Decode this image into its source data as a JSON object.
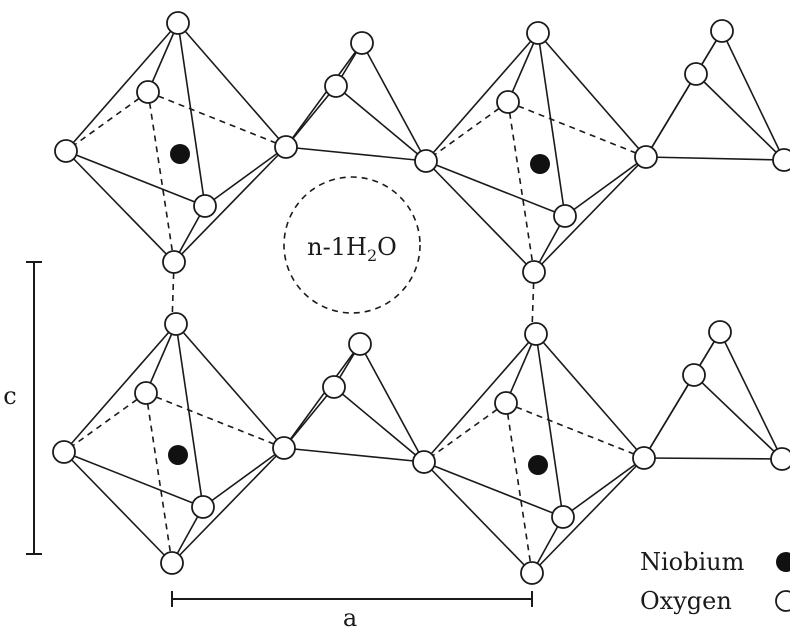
{
  "water_label": {
    "prefix": "n-1H",
    "subscript": "2",
    "suffix": "O"
  },
  "axis_c": "c",
  "axis_a": "a",
  "legend": {
    "niobium": "Niobium",
    "oxygen": "Oxygen"
  },
  "colors": {
    "ink": "#1a1a1a",
    "niobium_fill": "#111111",
    "oxygen_fill": "#ffffff"
  }
}
